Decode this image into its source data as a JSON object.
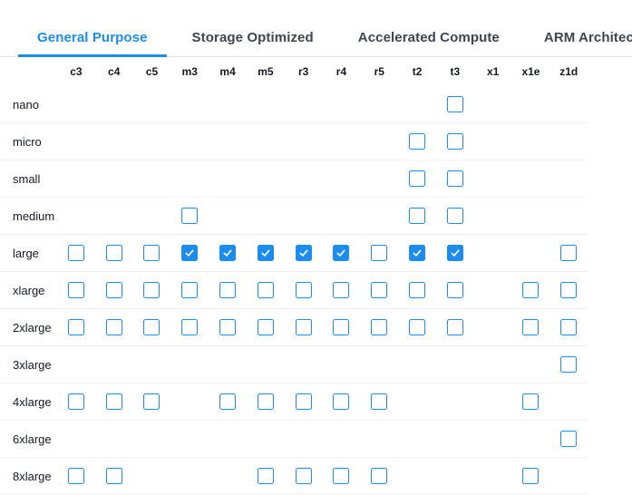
{
  "colors": {
    "accent": "#1b8cf0",
    "tab_inactive": "#3f4450",
    "text": "#16191f",
    "row_divider": "#f1f1f3",
    "tabbar_border": "#e3e4e7",
    "checkmark": "#ffffff"
  },
  "tabs": [
    {
      "label": "General Purpose",
      "active": true
    },
    {
      "label": "Storage Optimized",
      "active": false
    },
    {
      "label": "Accelerated Compute",
      "active": false
    },
    {
      "label": "ARM Architecture",
      "active": false
    }
  ],
  "matrix": {
    "columns": [
      "c3",
      "c4",
      "c5",
      "m3",
      "m4",
      "m5",
      "r3",
      "r4",
      "r5",
      "t2",
      "t3",
      "x1",
      "x1e",
      "z1d"
    ],
    "rows": [
      {
        "label": "nano",
        "cells": [
          "none",
          "none",
          "none",
          "none",
          "none",
          "none",
          "none",
          "none",
          "none",
          "none",
          "unchecked",
          "none",
          "none",
          "none"
        ]
      },
      {
        "label": "micro",
        "cells": [
          "none",
          "none",
          "none",
          "none",
          "none",
          "none",
          "none",
          "none",
          "none",
          "unchecked",
          "unchecked",
          "none",
          "none",
          "none"
        ]
      },
      {
        "label": "small",
        "cells": [
          "none",
          "none",
          "none",
          "none",
          "none",
          "none",
          "none",
          "none",
          "none",
          "unchecked",
          "unchecked",
          "none",
          "none",
          "none"
        ]
      },
      {
        "label": "medium",
        "cells": [
          "none",
          "none",
          "none",
          "unchecked",
          "none",
          "none",
          "none",
          "none",
          "none",
          "unchecked",
          "unchecked",
          "none",
          "none",
          "none"
        ]
      },
      {
        "label": "large",
        "cells": [
          "unchecked",
          "unchecked",
          "unchecked",
          "checked",
          "checked",
          "checked",
          "checked",
          "checked",
          "unchecked",
          "checked",
          "checked",
          "none",
          "none",
          "unchecked"
        ]
      },
      {
        "label": "xlarge",
        "cells": [
          "unchecked",
          "unchecked",
          "unchecked",
          "unchecked",
          "unchecked",
          "unchecked",
          "unchecked",
          "unchecked",
          "unchecked",
          "unchecked",
          "unchecked",
          "none",
          "unchecked",
          "unchecked"
        ]
      },
      {
        "label": "2xlarge",
        "cells": [
          "unchecked",
          "unchecked",
          "unchecked",
          "unchecked",
          "unchecked",
          "unchecked",
          "unchecked",
          "unchecked",
          "unchecked",
          "unchecked",
          "unchecked",
          "none",
          "unchecked",
          "unchecked"
        ]
      },
      {
        "label": "3xlarge",
        "cells": [
          "none",
          "none",
          "none",
          "none",
          "none",
          "none",
          "none",
          "none",
          "none",
          "none",
          "none",
          "none",
          "none",
          "unchecked"
        ]
      },
      {
        "label": "4xlarge",
        "cells": [
          "unchecked",
          "unchecked",
          "unchecked",
          "none",
          "unchecked",
          "unchecked",
          "unchecked",
          "unchecked",
          "unchecked",
          "none",
          "none",
          "none",
          "unchecked",
          "none"
        ]
      },
      {
        "label": "6xlarge",
        "cells": [
          "none",
          "none",
          "none",
          "none",
          "none",
          "none",
          "none",
          "none",
          "none",
          "none",
          "none",
          "none",
          "none",
          "unchecked"
        ]
      },
      {
        "label": "8xlarge",
        "cells": [
          "unchecked",
          "unchecked",
          "none",
          "none",
          "none",
          "unchecked",
          "unchecked",
          "unchecked",
          "unchecked",
          "none",
          "none",
          "none",
          "unchecked",
          "none"
        ]
      }
    ]
  }
}
